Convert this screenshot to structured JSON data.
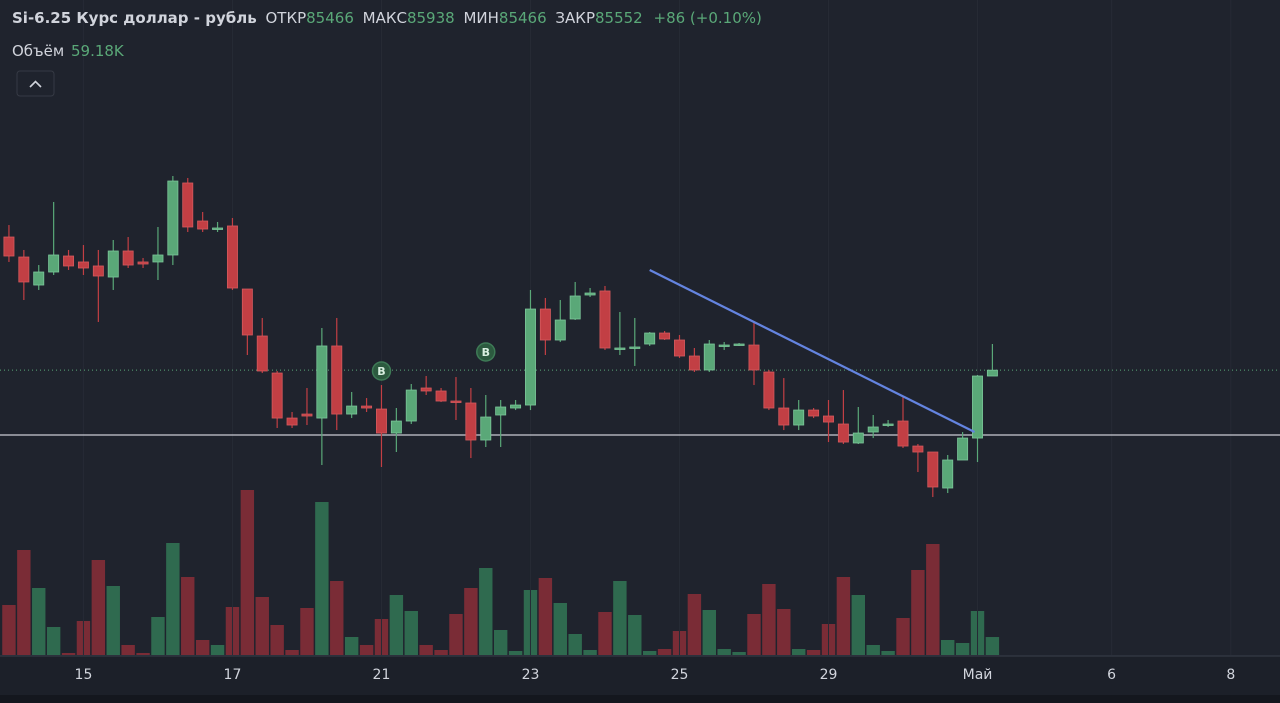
{
  "chart_data": {
    "type": "candlestick",
    "title": "Si-6.25 Курс доллар - рубль",
    "legend_labels": {
      "open": "ОТКР",
      "high": "МАКС",
      "low": "МИН",
      "close": "ЗАКР"
    },
    "change": "+86 (+0.10%)",
    "volume_name": "Объём",
    "volume_last_label": "59.18K",
    "up_color": "#5aa878",
    "down_color": "#c23f44",
    "volume_up_color": "#2f6a4f",
    "volume_down_color": "#7a2c36",
    "open": [
      87516,
      87221,
      86808,
      87000,
      87236,
      87148,
      87089,
      86926,
      87310,
      87148,
      87148,
      87251,
      88313,
      87752,
      87634,
      87679,
      86749,
      86056,
      85510,
      84846,
      84905,
      84846,
      85909,
      84905,
      85023,
      84979,
      84625,
      84802,
      85289,
      85245,
      85097,
      85068,
      84522,
      84891,
      84994,
      85038,
      86454,
      85997,
      86307,
      86661,
      86720,
      85864,
      85879,
      85938,
      86100,
      85997,
      85761,
      85555,
      85909,
      85923,
      85923,
      85525,
      84994,
      84743,
      84964,
      84876,
      84758,
      84478,
      84640,
      84743,
      84802,
      84433,
      84345,
      83814,
      84227,
      84551,
      85466
    ],
    "high": [
      87693,
      87325,
      87103,
      88033,
      87325,
      87398,
      87325,
      87472,
      87516,
      87207,
      87664,
      88416,
      88387,
      87885,
      87738,
      87797,
      86749,
      86322,
      85540,
      84935,
      85289,
      86174,
      86322,
      85230,
      85141,
      85333,
      84994,
      85348,
      85466,
      85289,
      85451,
      85289,
      85186,
      85112,
      85112,
      86735,
      86617,
      86587,
      86853,
      86764,
      86794,
      86410,
      86322,
      86115,
      86130,
      86071,
      85879,
      85997,
      85968,
      85953,
      86263,
      85555,
      85436,
      85112,
      84994,
      85112,
      85259,
      85009,
      84891,
      84817,
      85171,
      84463,
      84345,
      84301,
      84640,
      85481,
      85938
    ],
    "low": [
      87148,
      86587,
      86735,
      86956,
      87030,
      86956,
      86263,
      86735,
      87059,
      87059,
      86882,
      87103,
      87590,
      87590,
      87590,
      86735,
      85776,
      85510,
      84699,
      84699,
      84743,
      84153,
      84669,
      84846,
      84935,
      84124,
      84345,
      84758,
      85186,
      85082,
      84817,
      84256,
      84419,
      84419,
      84964,
      84964,
      85776,
      85968,
      86292,
      86631,
      85850,
      85776,
      85614,
      85909,
      85997,
      85732,
      85525,
      85525,
      85850,
      85909,
      85333,
      84964,
      84669,
      84669,
      84846,
      84492,
      84463,
      84463,
      84551,
      84714,
      84404,
      84050,
      83681,
      83740,
      84227,
      84197,
      85466
    ],
    "close": [
      87236,
      86853,
      87000,
      87251,
      87089,
      87059,
      86941,
      87310,
      87103,
      87118,
      87251,
      88342,
      87664,
      87634,
      87649,
      86764,
      86071,
      85540,
      84846,
      84743,
      84876,
      85909,
      84905,
      85023,
      84994,
      84625,
      84802,
      85259,
      85245,
      85097,
      85082,
      84522,
      84861,
      85009,
      85038,
      86454,
      85997,
      86292,
      86646,
      86690,
      85879,
      85879,
      85894,
      86100,
      86012,
      85761,
      85555,
      85938,
      85923,
      85938,
      85555,
      84994,
      84743,
      84964,
      84876,
      84787,
      84492,
      84625,
      84714,
      84758,
      84433,
      84345,
      83829,
      84227,
      84551,
      85466,
      85552
    ],
    "volume": [
      164500,
      345450,
      220430,
      92120,
      6580,
      111860,
      312550,
      227010,
      32900,
      6580,
      125020,
      368480,
      256620,
      49350,
      32900,
      157920,
      542850,
      190820,
      98700,
      16450,
      154630,
      503370,
      243460,
      59220,
      32900,
      118440,
      197400,
      144760,
      32900,
      16450,
      134890,
      220430,
      286230,
      82250,
      13160,
      213850,
      253330,
      171080,
      69090,
      16450,
      141470,
      243460,
      131600,
      13160,
      19740,
      78960,
      200690,
      148050,
      19740,
      9870,
      134890,
      233590,
      151340,
      19740,
      16450,
      101990,
      256620,
      197400,
      32900,
      13160,
      121730,
      279650,
      365190,
      49350,
      39480,
      144760,
      59180
    ],
    "xlim": [
      -0.6,
      85.3
    ],
    "ylim": [
      81351,
      91012
    ],
    "volume_ylim": [
      0,
      2155000
    ],
    "xticks": [
      {
        "value": 5,
        "label": "15"
      },
      {
        "value": 15,
        "label": "17"
      },
      {
        "value": 25,
        "label": "21"
      },
      {
        "value": 35,
        "label": "23"
      },
      {
        "value": 45,
        "label": "25"
      },
      {
        "value": 55,
        "label": "29"
      },
      {
        "value": 65,
        "label": "Май"
      },
      {
        "value": 74,
        "label": "6"
      },
      {
        "value": 82,
        "label": "8"
      }
    ],
    "hline": 84596,
    "trend_line": {
      "x": [
        43,
        64.8
      ],
      "y": [
        87030,
        84640
      ],
      "color": "#6484e0"
    },
    "markers": [
      {
        "label": "B",
        "x": 25,
        "y": 85540
      },
      {
        "label": "B",
        "x": 32,
        "y": 85820
      }
    ]
  }
}
